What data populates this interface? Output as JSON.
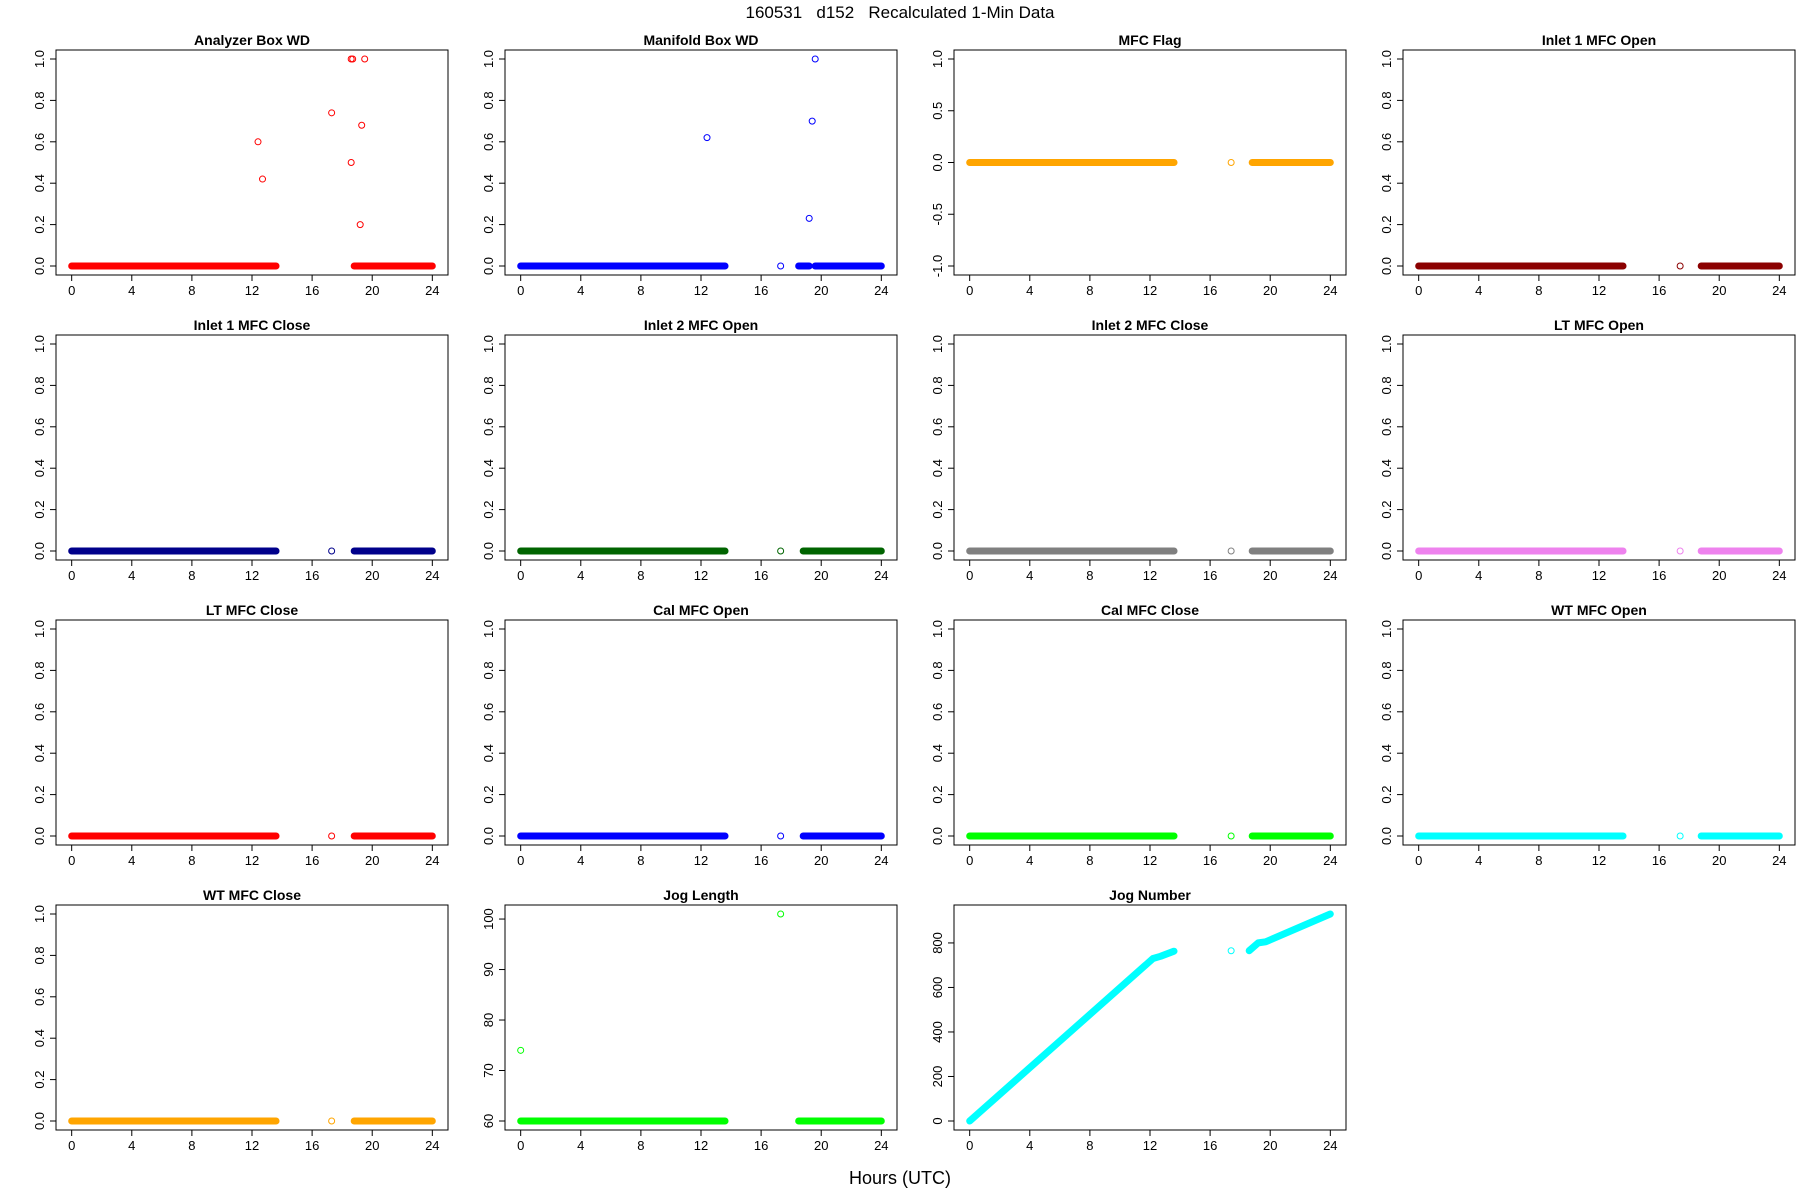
{
  "title": "160531   d152   Recalculated 1-Min Data",
  "xlabel": "Hours (UTC)",
  "chart_data": [
    {
      "type": "scatter",
      "title": "Analyzer Box WD",
      "color": "#ff0000",
      "xlim": [
        0,
        24
      ],
      "ylim": [
        0,
        1
      ],
      "xticks": [
        "0",
        "4",
        "8",
        "12",
        "16",
        "20",
        "24"
      ],
      "yticks": [
        "0.0",
        "0.2",
        "0.4",
        "0.6",
        "0.8",
        "1.0"
      ],
      "segments": [
        [
          0,
          13.6
        ],
        [
          18.8,
          24
        ]
      ],
      "baseline": 0,
      "points": [
        [
          12.4,
          0.6
        ],
        [
          12.7,
          0.42
        ],
        [
          17.3,
          0.74
        ],
        [
          18.6,
          1.0
        ],
        [
          18.7,
          1.0
        ],
        [
          18.6,
          0.5
        ],
        [
          19.2,
          0.2
        ],
        [
          19.3,
          0.68
        ],
        [
          19.5,
          1.0
        ]
      ]
    },
    {
      "type": "scatter",
      "title": "Manifold Box WD",
      "color": "#0000ff",
      "xlim": [
        0,
        24
      ],
      "ylim": [
        0,
        1
      ],
      "xticks": [
        "0",
        "4",
        "8",
        "12",
        "16",
        "20",
        "24"
      ],
      "yticks": [
        "0.0",
        "0.2",
        "0.4",
        "0.6",
        "0.8",
        "1.0"
      ],
      "segments": [
        [
          0,
          13.6
        ],
        [
          18.5,
          19.2
        ],
        [
          19.6,
          24
        ]
      ],
      "baseline": 0,
      "points": [
        [
          12.4,
          0.62
        ],
        [
          17.3,
          0.0
        ],
        [
          19.2,
          0.23
        ],
        [
          19.4,
          0.7
        ],
        [
          19.6,
          1.0
        ]
      ]
    },
    {
      "type": "scatter",
      "title": "MFC Flag",
      "color": "#ffa500",
      "xlim": [
        0,
        24
      ],
      "ylim": [
        -1,
        1
      ],
      "xticks": [
        "0",
        "4",
        "8",
        "12",
        "16",
        "20",
        "24"
      ],
      "yticks": [
        "-1.0",
        "-0.5",
        "0.0",
        "0.5",
        "1.0"
      ],
      "segments": [
        [
          0,
          13.6
        ],
        [
          18.8,
          24
        ]
      ],
      "baseline": 0,
      "points": [
        [
          17.4,
          0.0
        ]
      ]
    },
    {
      "type": "scatter",
      "title": "Inlet 1 MFC Open",
      "color": "#8b0000",
      "xlim": [
        0,
        24
      ],
      "ylim": [
        0,
        1
      ],
      "xticks": [
        "0",
        "4",
        "8",
        "12",
        "16",
        "20",
        "24"
      ],
      "yticks": [
        "0.0",
        "0.2",
        "0.4",
        "0.6",
        "0.8",
        "1.0"
      ],
      "segments": [
        [
          0,
          13.6
        ],
        [
          18.8,
          24
        ]
      ],
      "baseline": 0,
      "points": [
        [
          17.4,
          0.0
        ]
      ]
    },
    {
      "type": "scatter",
      "title": "Inlet 1 MFC Close",
      "color": "#00008b",
      "xlim": [
        0,
        24
      ],
      "ylim": [
        0,
        1
      ],
      "xticks": [
        "0",
        "4",
        "8",
        "12",
        "16",
        "20",
        "24"
      ],
      "yticks": [
        "0.0",
        "0.2",
        "0.4",
        "0.6",
        "0.8",
        "1.0"
      ],
      "segments": [
        [
          0,
          13.6
        ],
        [
          18.8,
          24
        ]
      ],
      "baseline": 0,
      "points": [
        [
          17.3,
          0.0
        ]
      ]
    },
    {
      "type": "scatter",
      "title": "Inlet 2 MFC Open",
      "color": "#006400",
      "xlim": [
        0,
        24
      ],
      "ylim": [
        0,
        1
      ],
      "xticks": [
        "0",
        "4",
        "8",
        "12",
        "16",
        "20",
        "24"
      ],
      "yticks": [
        "0.0",
        "0.2",
        "0.4",
        "0.6",
        "0.8",
        "1.0"
      ],
      "segments": [
        [
          0,
          13.6
        ],
        [
          18.8,
          24
        ]
      ],
      "baseline": 0,
      "points": [
        [
          17.3,
          0.0
        ]
      ]
    },
    {
      "type": "scatter",
      "title": "Inlet 2 MFC Close",
      "color": "#808080",
      "xlim": [
        0,
        24
      ],
      "ylim": [
        0,
        1
      ],
      "xticks": [
        "0",
        "4",
        "8",
        "12",
        "16",
        "20",
        "24"
      ],
      "yticks": [
        "0.0",
        "0.2",
        "0.4",
        "0.6",
        "0.8",
        "1.0"
      ],
      "segments": [
        [
          0,
          13.6
        ],
        [
          18.8,
          24
        ]
      ],
      "baseline": 0,
      "points": [
        [
          17.4,
          0.0
        ]
      ]
    },
    {
      "type": "scatter",
      "title": "LT MFC Open",
      "color": "#ee82ee",
      "xlim": [
        0,
        24
      ],
      "ylim": [
        0,
        1
      ],
      "xticks": [
        "0",
        "4",
        "8",
        "12",
        "16",
        "20",
        "24"
      ],
      "yticks": [
        "0.0",
        "0.2",
        "0.4",
        "0.6",
        "0.8",
        "1.0"
      ],
      "segments": [
        [
          0,
          13.6
        ],
        [
          18.8,
          24
        ]
      ],
      "baseline": 0,
      "points": [
        [
          17.4,
          0.0
        ]
      ]
    },
    {
      "type": "scatter",
      "title": "LT MFC Close",
      "color": "#ff0000",
      "xlim": [
        0,
        24
      ],
      "ylim": [
        0,
        1
      ],
      "xticks": [
        "0",
        "4",
        "8",
        "12",
        "16",
        "20",
        "24"
      ],
      "yticks": [
        "0.0",
        "0.2",
        "0.4",
        "0.6",
        "0.8",
        "1.0"
      ],
      "segments": [
        [
          0,
          13.6
        ],
        [
          18.8,
          24
        ]
      ],
      "baseline": 0,
      "points": [
        [
          17.3,
          0.0
        ]
      ]
    },
    {
      "type": "scatter",
      "title": "Cal MFC Open",
      "color": "#0000ff",
      "xlim": [
        0,
        24
      ],
      "ylim": [
        0,
        1
      ],
      "xticks": [
        "0",
        "4",
        "8",
        "12",
        "16",
        "20",
        "24"
      ],
      "yticks": [
        "0.0",
        "0.2",
        "0.4",
        "0.6",
        "0.8",
        "1.0"
      ],
      "segments": [
        [
          0,
          13.6
        ],
        [
          18.8,
          24
        ]
      ],
      "baseline": 0,
      "points": [
        [
          17.3,
          0.0
        ]
      ]
    },
    {
      "type": "scatter",
      "title": "Cal MFC Close",
      "color": "#00ff00",
      "xlim": [
        0,
        24
      ],
      "ylim": [
        0,
        1
      ],
      "xticks": [
        "0",
        "4",
        "8",
        "12",
        "16",
        "20",
        "24"
      ],
      "yticks": [
        "0.0",
        "0.2",
        "0.4",
        "0.6",
        "0.8",
        "1.0"
      ],
      "segments": [
        [
          0,
          13.6
        ],
        [
          18.8,
          24
        ]
      ],
      "baseline": 0,
      "points": [
        [
          17.4,
          0.0
        ]
      ]
    },
    {
      "type": "scatter",
      "title": "WT MFC Open",
      "color": "#00ffff",
      "xlim": [
        0,
        24
      ],
      "ylim": [
        0,
        1
      ],
      "xticks": [
        "0",
        "4",
        "8",
        "12",
        "16",
        "20",
        "24"
      ],
      "yticks": [
        "0.0",
        "0.2",
        "0.4",
        "0.6",
        "0.8",
        "1.0"
      ],
      "segments": [
        [
          0,
          13.6
        ],
        [
          18.8,
          24
        ]
      ],
      "baseline": 0,
      "points": [
        [
          17.4,
          0.0
        ]
      ]
    },
    {
      "type": "scatter",
      "title": "WT MFC Close",
      "color": "#ffa500",
      "xlim": [
        0,
        24
      ],
      "ylim": [
        0,
        1
      ],
      "xticks": [
        "0",
        "4",
        "8",
        "12",
        "16",
        "20",
        "24"
      ],
      "yticks": [
        "0.0",
        "0.2",
        "0.4",
        "0.6",
        "0.8",
        "1.0"
      ],
      "segments": [
        [
          0,
          13.6
        ],
        [
          18.8,
          24
        ]
      ],
      "baseline": 0,
      "points": [
        [
          17.3,
          0.0
        ]
      ]
    },
    {
      "type": "scatter",
      "title": "Jog Length",
      "color": "#00ff00",
      "xlim": [
        0,
        24
      ],
      "ylim": [
        60,
        101
      ],
      "xticks": [
        "0",
        "4",
        "8",
        "12",
        "16",
        "20",
        "24"
      ],
      "yticks": [
        "60",
        "70",
        "80",
        "90",
        "100"
      ],
      "segments": [
        [
          0,
          13.6
        ],
        [
          18.5,
          24
        ]
      ],
      "baseline": 60,
      "points": [
        [
          0.0,
          74
        ],
        [
          17.3,
          101
        ]
      ]
    },
    {
      "type": "line",
      "title": "Jog Number",
      "color": "#00ffff",
      "xlim": [
        0,
        24
      ],
      "ylim": [
        0,
        930
      ],
      "xticks": [
        "0",
        "4",
        "8",
        "12",
        "16",
        "20",
        "24"
      ],
      "yticks": [
        "0",
        "200",
        "400",
        "600",
        "800"
      ],
      "lines": [
        [
          [
            0,
            0
          ],
          [
            12.2,
            730
          ],
          [
            12.7,
            740
          ],
          [
            13.6,
            763
          ]
        ],
        [
          [
            18.6,
            765
          ],
          [
            19.2,
            800
          ],
          [
            19.7,
            805
          ],
          [
            24,
            930
          ]
        ]
      ],
      "points": [
        [
          17.4,
          765
        ]
      ]
    }
  ]
}
